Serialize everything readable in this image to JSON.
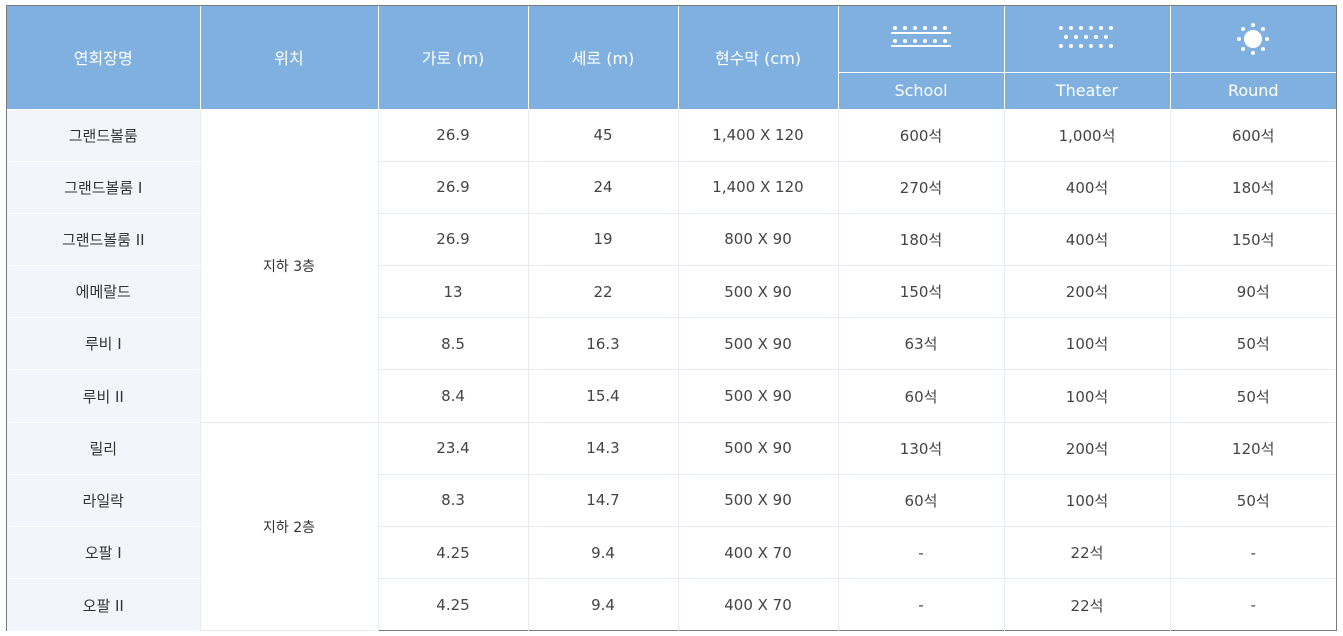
{
  "header": {
    "name": "연회장명",
    "location": "위치",
    "width": "가로 (m)",
    "length": "세로 (m)",
    "banner": "현수막 (cm)",
    "layouts": [
      {
        "label": "School",
        "icon": "school-layout-icon"
      },
      {
        "label": "Theater",
        "icon": "theater-layout-icon"
      },
      {
        "label": "Round",
        "icon": "round-layout-icon"
      }
    ]
  },
  "locations": {
    "b3": "지하 3층",
    "b2": "지하 2층"
  },
  "rows": [
    {
      "name": "그랜드볼룸",
      "width": "26.9",
      "length": "45",
      "banner": "1,400 X 120",
      "school": "600석",
      "theater": "1,000석",
      "round": "600석"
    },
    {
      "name": "그랜드볼룸 I",
      "width": "26.9",
      "length": "24",
      "banner": "1,400 X 120",
      "school": "270석",
      "theater": "400석",
      "round": "180석"
    },
    {
      "name": "그랜드볼룸 II",
      "width": "26.9",
      "length": "19",
      "banner": "800 X 90",
      "school": "180석",
      "theater": "400석",
      "round": "150석"
    },
    {
      "name": "에메랄드",
      "width": "13",
      "length": "22",
      "banner": "500 X 90",
      "school": "150석",
      "theater": "200석",
      "round": "90석"
    },
    {
      "name": "루비 I",
      "width": "8.5",
      "length": "16.3",
      "banner": "500 X 90",
      "school": "63석",
      "theater": "100석",
      "round": "50석"
    },
    {
      "name": "루비 II",
      "width": "8.4",
      "length": "15.4",
      "banner": "500 X 90",
      "school": "60석",
      "theater": "100석",
      "round": "50석"
    },
    {
      "name": "릴리",
      "width": "23.4",
      "length": "14.3",
      "banner": "500 X 90",
      "school": "130석",
      "theater": "200석",
      "round": "120석"
    },
    {
      "name": "라일락",
      "width": "8.3",
      "length": "14.7",
      "banner": "500 X 90",
      "school": "60석",
      "theater": "100석",
      "round": "50석"
    },
    {
      "name": "오팔 I",
      "width": "4.25",
      "length": "9.4",
      "banner": "400 X 70",
      "school": "-",
      "theater": "22석",
      "round": "-"
    },
    {
      "name": "오팔 II",
      "width": "4.25",
      "length": "9.4",
      "banner": "400 X 70",
      "school": "-",
      "theater": "22석",
      "round": "-"
    }
  ],
  "colors": {
    "header_bg": "#7fb0df",
    "name_col_bg": "#f2f6fb",
    "grid": "#e4ebf2"
  }
}
